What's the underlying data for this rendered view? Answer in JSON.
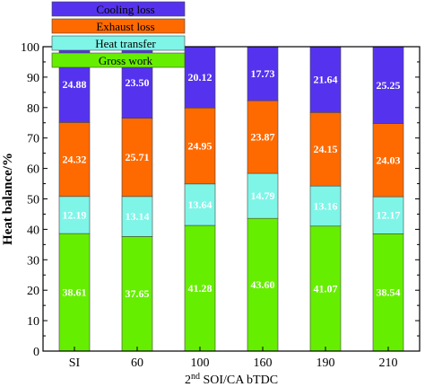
{
  "chart_data": {
    "type": "bar",
    "stacked": true,
    "categories": [
      "SI",
      "60",
      "100",
      "160",
      "190",
      "210"
    ],
    "series": [
      {
        "name": "Gross work",
        "color": "#66ee00",
        "values": [
          38.61,
          37.65,
          41.28,
          43.6,
          41.07,
          38.54
        ]
      },
      {
        "name": "Heat transfer",
        "color": "#7ff5e8",
        "values": [
          12.19,
          13.14,
          13.64,
          14.79,
          13.16,
          12.17
        ]
      },
      {
        "name": "Exhaust loss",
        "color": "#ff6a00",
        "values": [
          24.32,
          25.71,
          24.95,
          23.87,
          24.15,
          24.03
        ]
      },
      {
        "name": "Cooling loss",
        "color": "#5533ee",
        "values": [
          24.88,
          23.5,
          20.12,
          17.73,
          21.64,
          25.25
        ]
      }
    ],
    "value_labels": {
      "Gross work": [
        "38.61",
        "37.65",
        "41.28",
        "43.60",
        "41.07",
        "38.54"
      ],
      "Heat transfer": [
        "12.19",
        "13.14",
        "13.64",
        "14.79",
        "13.16",
        "12.17"
      ],
      "Exhaust loss": [
        "24.32",
        "25.71",
        "24.95",
        "23.87",
        "24.15",
        "24.03"
      ],
      "Cooling loss": [
        "24.88",
        "23.50",
        "20.12",
        "17.73",
        "21.64",
        "25.25"
      ]
    },
    "ylabel": "Heat balance/%",
    "xlabel_sup": "nd",
    "xlabel_pre": "2",
    "xlabel_post": " SOI/CA bTDC",
    "ylim": [
      0,
      100
    ],
    "yticks": [
      "0",
      "10",
      "20",
      "30",
      "40",
      "50",
      "60",
      "70",
      "80",
      "90",
      "100"
    ],
    "legend_position": "top-left",
    "legend_order": [
      "Cooling loss",
      "Exhaust loss",
      "Heat transfer",
      "Gross work"
    ],
    "grid": false
  }
}
